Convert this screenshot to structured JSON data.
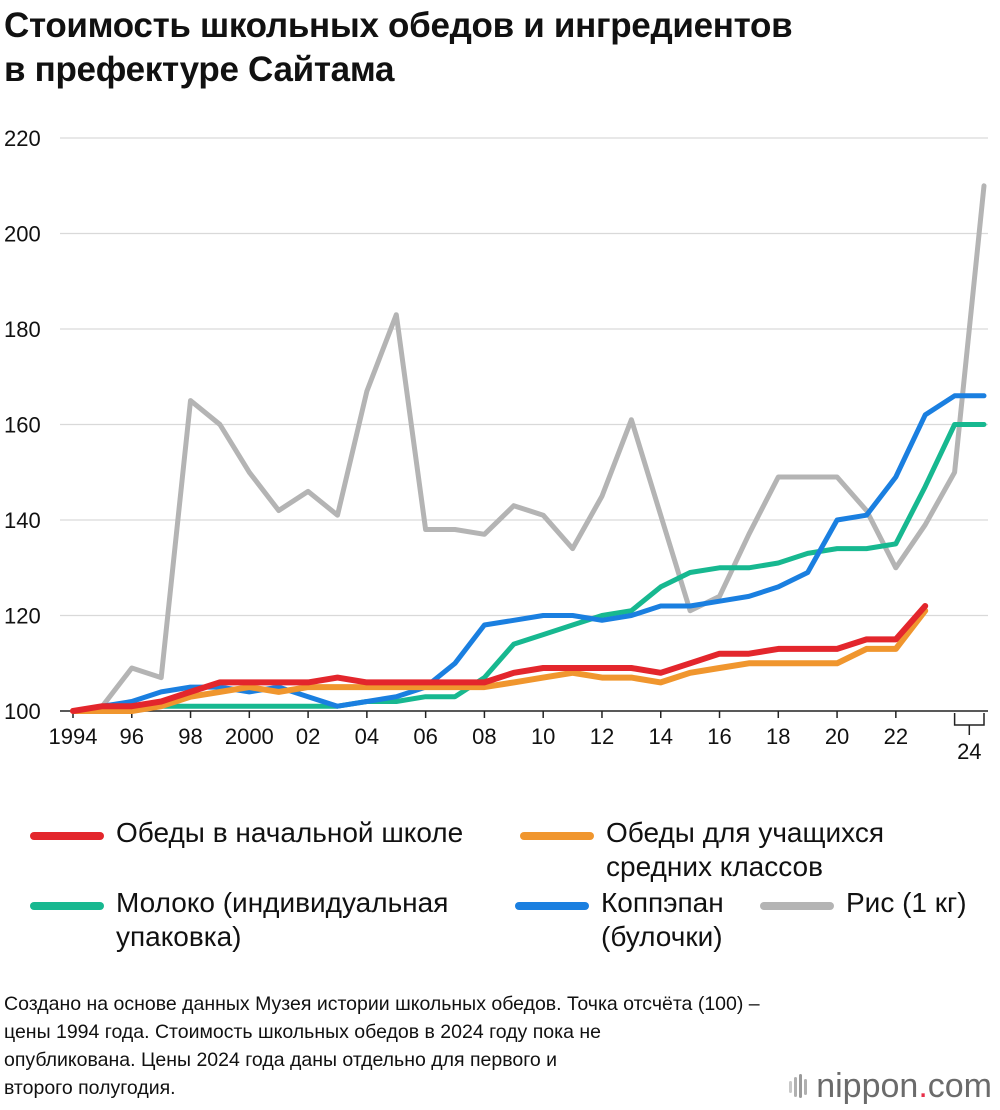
{
  "title": {
    "line1": "Стоимость школьных обедов и ингредиентов",
    "line2": "в префектуре Сайтама"
  },
  "chart_data": {
    "type": "line",
    "ylim": [
      100,
      220
    ],
    "yticks": [
      "100",
      "120",
      "140",
      "160",
      "180",
      "200",
      "220"
    ],
    "xlim": [
      1994,
      2025
    ],
    "xticks": [
      {
        "x": 1994,
        "label": "1994"
      },
      {
        "x": 1996,
        "label": "96"
      },
      {
        "x": 1998,
        "label": "98"
      },
      {
        "x": 2000,
        "label": "2000"
      },
      {
        "x": 2002,
        "label": "02"
      },
      {
        "x": 2004,
        "label": "04"
      },
      {
        "x": 2006,
        "label": "06"
      },
      {
        "x": 2008,
        "label": "08"
      },
      {
        "x": 2010,
        "label": "10"
      },
      {
        "x": 2012,
        "label": "12"
      },
      {
        "x": 2014,
        "label": "14"
      },
      {
        "x": 2016,
        "label": "16"
      },
      {
        "x": 2018,
        "label": "18"
      },
      {
        "x": 2020,
        "label": "20"
      },
      {
        "x": 2022,
        "label": "22"
      }
    ],
    "bracket": {
      "from": 2024,
      "to": 2025,
      "label": "24"
    },
    "series": [
      {
        "name": "Рис (1 кг)",
        "color": "#b4b4b4",
        "x": [
          1994,
          1995,
          1996,
          1997,
          1998,
          1999,
          2000,
          2001,
          2002,
          2003,
          2004,
          2005,
          2006,
          2007,
          2008,
          2009,
          2010,
          2011,
          2012,
          2013,
          2014,
          2015,
          2016,
          2017,
          2018,
          2019,
          2020,
          2021,
          2022,
          2023,
          2024,
          2025
        ],
        "values": [
          100,
          101,
          109,
          107,
          165,
          160,
          150,
          142,
          146,
          141,
          167,
          183,
          138,
          138,
          137,
          143,
          141,
          134,
          145,
          161,
          141,
          121,
          124,
          137,
          149,
          149,
          149,
          142,
          130,
          139,
          150,
          210
        ]
      },
      {
        "name": "Молоко (индивидуальная упаковка)",
        "color": "#17b890",
        "x": [
          1994,
          1995,
          1996,
          1997,
          1998,
          1999,
          2000,
          2001,
          2002,
          2003,
          2004,
          2005,
          2006,
          2007,
          2008,
          2009,
          2010,
          2011,
          2012,
          2013,
          2014,
          2015,
          2016,
          2017,
          2018,
          2019,
          2020,
          2021,
          2022,
          2023,
          2024,
          2025
        ],
        "values": [
          100,
          101,
          101,
          101,
          101,
          101,
          101,
          101,
          101,
          101,
          102,
          102,
          103,
          103,
          107,
          114,
          116,
          118,
          120,
          121,
          126,
          129,
          130,
          130,
          131,
          133,
          134,
          134,
          135,
          147,
          160,
          160
        ]
      },
      {
        "name": "Коппэпан (булочки)",
        "color": "#1a7fe0",
        "x": [
          1994,
          1995,
          1996,
          1997,
          1998,
          1999,
          2000,
          2001,
          2002,
          2003,
          2004,
          2005,
          2006,
          2007,
          2008,
          2009,
          2010,
          2011,
          2012,
          2013,
          2014,
          2015,
          2016,
          2017,
          2018,
          2019,
          2020,
          2021,
          2022,
          2023,
          2024,
          2025
        ],
        "values": [
          100,
          101,
          102,
          104,
          105,
          105,
          104,
          105,
          103,
          101,
          102,
          103,
          105,
          110,
          118,
          119,
          120,
          120,
          119,
          120,
          122,
          122,
          123,
          124,
          126,
          129,
          140,
          141,
          149,
          162,
          166,
          166
        ]
      },
      {
        "name": "Обеды для учащихся средних классов",
        "color": "#f0962e",
        "x": [
          1994,
          1995,
          1996,
          1997,
          1998,
          1999,
          2000,
          2001,
          2002,
          2003,
          2004,
          2005,
          2006,
          2007,
          2008,
          2009,
          2010,
          2011,
          2012,
          2013,
          2014,
          2015,
          2016,
          2017,
          2018,
          2019,
          2020,
          2021,
          2022,
          2023
        ],
        "values": [
          100,
          100,
          100,
          101,
          103,
          104,
          105,
          104,
          105,
          105,
          105,
          105,
          105,
          105,
          105,
          106,
          107,
          108,
          107,
          107,
          106,
          108,
          109,
          110,
          110,
          110,
          110,
          113,
          113,
          121
        ]
      },
      {
        "name": "Обеды в начальной школе",
        "color": "#e3262c",
        "x": [
          1994,
          1995,
          1996,
          1997,
          1998,
          1999,
          2000,
          2001,
          2002,
          2003,
          2004,
          2005,
          2006,
          2007,
          2008,
          2009,
          2010,
          2011,
          2012,
          2013,
          2014,
          2015,
          2016,
          2017,
          2018,
          2019,
          2020,
          2021,
          2022,
          2023
        ],
        "values": [
          100,
          101,
          101,
          102,
          104,
          106,
          106,
          106,
          106,
          107,
          106,
          106,
          106,
          106,
          106,
          108,
          109,
          109,
          109,
          109,
          108,
          110,
          112,
          112,
          113,
          113,
          113,
          115,
          115,
          122
        ]
      }
    ]
  },
  "legend": {
    "elementary": {
      "line1": "Обеды в начальной школе",
      "color": "#e3262c"
    },
    "middle": {
      "line1": "Обеды для учащихся",
      "line2": "средних классов",
      "color": "#f0962e"
    },
    "milk": {
      "line1": "Молоко (индивидуальная",
      "line2": "упаковка)",
      "color": "#17b890"
    },
    "koppepan": {
      "line1": "Коппэпан",
      "line2": "(булочки)",
      "color": "#1a7fe0"
    },
    "rice": {
      "line1": "Рис (1 кг)",
      "color": "#b4b4b4"
    }
  },
  "footnote": {
    "line1": "Создано на основе данных Музея истории школьных обедов. Точка отсчёта (100) –",
    "line2": "цены 1994 года. Стоимость школьных обедов в 2024 году пока не",
    "line3": "опубликована. Цены 2024 года даны отдельно для первого и",
    "line4": "второго полугодия."
  },
  "brand": {
    "part1": "nippon",
    "dot": ".",
    "part2": "com"
  }
}
